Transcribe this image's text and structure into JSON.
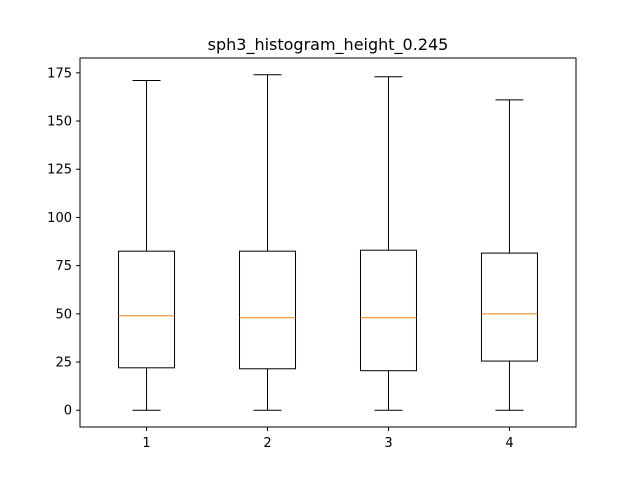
{
  "chart_data": {
    "type": "box",
    "title": "sph3_histogram_height_0.245",
    "xlabel": "",
    "ylabel": "",
    "categories": [
      "1",
      "2",
      "3",
      "4"
    ],
    "boxes": [
      {
        "whisker_low": 0,
        "q1": 22,
        "median": 49,
        "q3": 82.5,
        "whisker_high": 171
      },
      {
        "whisker_low": 0,
        "q1": 21.5,
        "median": 48,
        "q3": 82.5,
        "whisker_high": 174
      },
      {
        "whisker_low": 0,
        "q1": 20.5,
        "median": 48,
        "q3": 83,
        "whisker_high": 173
      },
      {
        "whisker_low": 0,
        "q1": 25.5,
        "median": 50,
        "q3": 81.5,
        "whisker_high": 161
      }
    ],
    "ylim": [
      -8.7,
      182.7
    ],
    "yticks": [
      0,
      25,
      50,
      75,
      100,
      125,
      150,
      175
    ],
    "ytick_labels": [
      "0",
      "25",
      "50",
      "75",
      "100",
      "125",
      "150",
      "175"
    ],
    "grid": false,
    "colors": {
      "box": "#000000",
      "median": "#ff7f0e",
      "axes": "#000000"
    }
  }
}
